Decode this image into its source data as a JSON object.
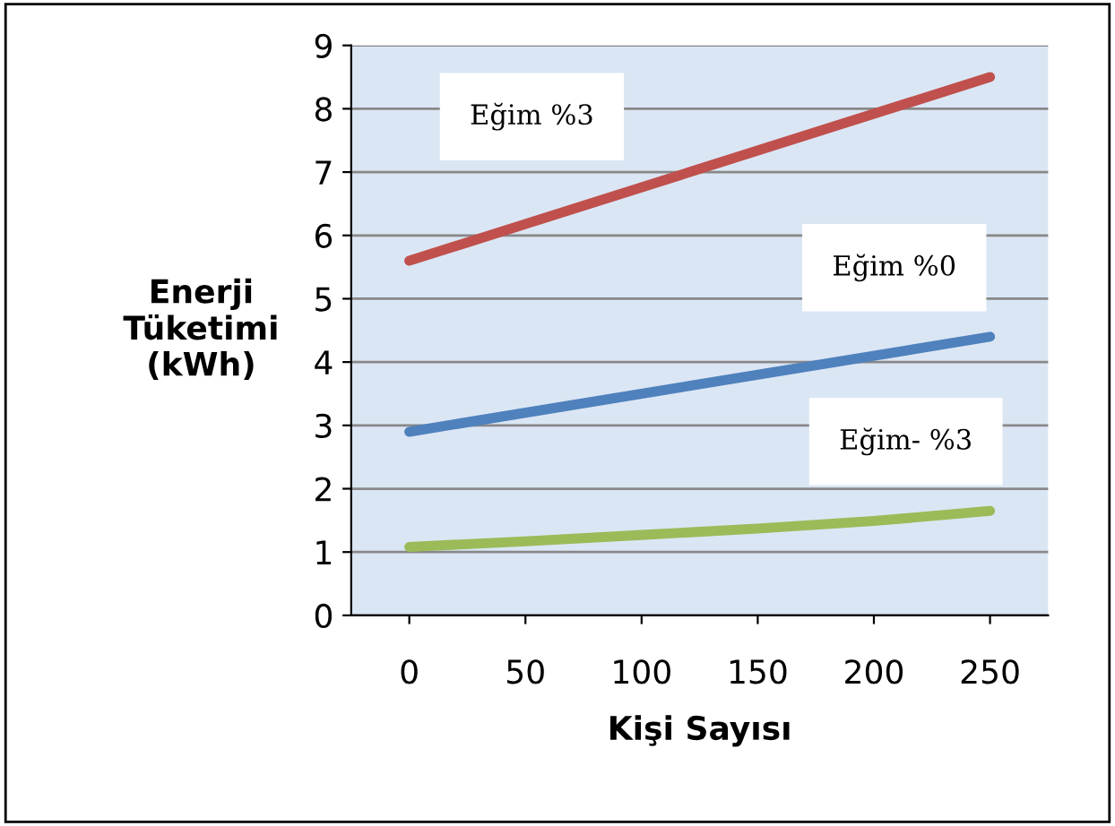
{
  "chart_data": {
    "type": "line",
    "xlabel": "Kişi Sayısı",
    "ylabel": "Enerji\nTüketimi\n(kWh)",
    "series": [
      {
        "x": [
          0,
          250
        ],
        "values": [
          5.6,
          8.5
        ],
        "color": "#c0504d"
      },
      {
        "x": [
          0,
          250
        ],
        "values": [
          2.9,
          4.4
        ],
        "color": "#4f81bd"
      },
      {
        "x": [
          0,
          50,
          100,
          150,
          200,
          250
        ],
        "values": [
          1.08,
          1.17,
          1.27,
          1.37,
          1.49,
          1.65
        ],
        "color": "#9bbb59"
      }
    ],
    "xlim": [
      -25,
      275
    ],
    "xticks": [
      0,
      50,
      100,
      150,
      200,
      250
    ],
    "ylim": [
      0,
      9
    ],
    "yticks": [
      0,
      1,
      2,
      3,
      4,
      5,
      6,
      7,
      8,
      9
    ],
    "grid": "y",
    "legend": false,
    "annotations": [
      "Eğim %3",
      "Eğim %0",
      "Eğim- %3"
    ]
  }
}
